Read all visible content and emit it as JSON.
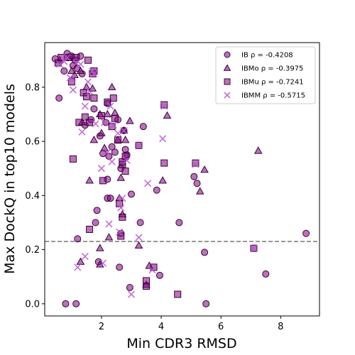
{
  "chart_data": {
    "type": "scatter",
    "xlabel": "Min CDR3 RMSD",
    "ylabel": "Max DockQ in top10 models",
    "xlim": [
      0.1,
      9.3
    ],
    "ylim": [
      -0.045,
      0.965
    ],
    "x_ticks": [
      2,
      4,
      6,
      8
    ],
    "y_ticks": [
      0.0,
      0.2,
      0.4,
      0.6,
      0.8
    ],
    "grid": false,
    "legend_position": "top-right",
    "reference_line": {
      "y": 0.23,
      "style": "dashed",
      "color": "#777777"
    },
    "series": [
      {
        "name": "IB ρ = -0.4208",
        "marker": "circle",
        "color": "#800080",
        "points": [
          [
            0.45,
            0.905
          ],
          [
            0.58,
            0.76
          ],
          [
            0.75,
            0.86
          ],
          [
            0.85,
            0.925
          ],
          [
            1.0,
            0.915
          ],
          [
            1.05,
            0.88
          ],
          [
            1.12,
            0.9
          ],
          [
            1.18,
            0.87
          ],
          [
            1.3,
            0.915
          ],
          [
            1.35,
            0.85
          ],
          [
            1.45,
            0.66
          ],
          [
            1.65,
            0.68
          ],
          [
            1.75,
            0.72
          ],
          [
            1.95,
            0.62
          ],
          [
            2.05,
            0.555
          ],
          [
            2.15,
            0.67
          ],
          [
            2.2,
            0.74
          ],
          [
            2.25,
            0.545
          ],
          [
            2.35,
            0.58
          ],
          [
            2.45,
            0.56
          ],
          [
            2.55,
            0.68
          ],
          [
            2.65,
            0.5
          ],
          [
            2.75,
            0.64
          ],
          [
            2.8,
            0.57
          ],
          [
            2.85,
            0.55
          ],
          [
            3.0,
            0.405
          ],
          [
            3.4,
            0.655
          ],
          [
            3.85,
            0.42
          ],
          [
            2.2,
            0.46
          ],
          [
            2.2,
            0.39
          ],
          [
            2.3,
            0.39
          ],
          [
            1.85,
            0.345
          ],
          [
            1.8,
            0.3
          ],
          [
            2.65,
            0.26
          ],
          [
            3.3,
            0.3
          ],
          [
            4.6,
            0.3
          ],
          [
            5.1,
            0.47
          ],
          [
            5.2,
            0.445
          ],
          [
            5.45,
            0.19
          ],
          [
            7.5,
            0.11
          ],
          [
            8.85,
            0.26
          ],
          [
            1.2,
            0.24
          ],
          [
            1.9,
            0.155
          ],
          [
            2.6,
            0.135
          ],
          [
            2.95,
            0.06
          ],
          [
            3.95,
            0.105
          ],
          [
            0.8,
            0.0
          ],
          [
            1.15,
            0.0
          ],
          [
            5.5,
            0.0
          ]
        ]
      },
      {
        "name": "IBMo ρ = -0.3975",
        "marker": "triangle",
        "color": "#800080",
        "points": [
          [
            0.6,
            0.9
          ],
          [
            0.9,
            0.91
          ],
          [
            1.0,
            0.86
          ],
          [
            1.1,
            0.845
          ],
          [
            1.3,
            0.86
          ],
          [
            1.35,
            0.67
          ],
          [
            1.5,
            0.8
          ],
          [
            1.6,
            0.455
          ],
          [
            1.7,
            0.795
          ],
          [
            1.75,
            0.605
          ],
          [
            1.95,
            0.7
          ],
          [
            2.0,
            0.63
          ],
          [
            2.1,
            0.575
          ],
          [
            2.2,
            0.7
          ],
          [
            2.35,
            0.8
          ],
          [
            2.45,
            0.705
          ],
          [
            2.55,
            0.605
          ],
          [
            2.6,
            0.39
          ],
          [
            2.65,
            0.465
          ],
          [
            2.75,
            0.64
          ],
          [
            2.8,
            0.605
          ],
          [
            2.95,
            0.675
          ],
          [
            3.25,
            0.215
          ],
          [
            3.6,
            0.14
          ],
          [
            4.05,
            0.455
          ],
          [
            4.2,
            0.695
          ],
          [
            5.3,
            0.415
          ],
          [
            5.45,
            0.495
          ],
          [
            7.25,
            0.565
          ],
          [
            1.3,
            0.155
          ],
          [
            1.95,
            0.205
          ],
          [
            2.25,
            0.245
          ],
          [
            2.7,
            0.33
          ],
          [
            3.5,
            0.07
          ],
          [
            1.95,
            0.145
          ]
        ]
      },
      {
        "name": "IBMu ρ = -0.7241",
        "marker": "square",
        "color": "#800080",
        "points": [
          [
            0.55,
            0.89
          ],
          [
            0.65,
            0.91
          ],
          [
            0.9,
            0.91
          ],
          [
            1.0,
            0.82
          ],
          [
            1.05,
            0.535
          ],
          [
            1.15,
            0.91
          ],
          [
            1.25,
            0.67
          ],
          [
            1.4,
            0.78
          ],
          [
            1.45,
            0.69
          ],
          [
            1.5,
            0.765
          ],
          [
            1.55,
            0.9
          ],
          [
            1.6,
            0.67
          ],
          [
            1.7,
            0.85
          ],
          [
            1.75,
            0.76
          ],
          [
            1.75,
            0.86
          ],
          [
            2.0,
            0.695
          ],
          [
            2.05,
            0.455
          ],
          [
            2.2,
            0.745
          ],
          [
            2.35,
            0.655
          ],
          [
            2.4,
            0.76
          ],
          [
            2.45,
            0.685
          ],
          [
            2.55,
            0.605
          ],
          [
            2.6,
            0.37
          ],
          [
            2.7,
            0.515
          ],
          [
            2.7,
            0.525
          ],
          [
            2.8,
            0.49
          ],
          [
            2.8,
            0.545
          ],
          [
            3.25,
            0.585
          ],
          [
            4.1,
            0.735
          ],
          [
            4.1,
            0.52
          ],
          [
            5.15,
            0.52
          ],
          [
            7.1,
            0.205
          ],
          [
            1.6,
            0.275
          ],
          [
            2.7,
            0.32
          ],
          [
            2.65,
            0.25
          ],
          [
            3.5,
            0.085
          ],
          [
            3.5,
            0.065
          ],
          [
            3.75,
            0.135
          ],
          [
            4.55,
            0.035
          ]
        ]
      },
      {
        "name": "IBMM ρ = -0.5715",
        "marker": "x",
        "color": "#BA55D3",
        "points": [
          [
            0.6,
            0.885
          ],
          [
            0.75,
            0.895
          ],
          [
            0.85,
            0.91
          ],
          [
            0.95,
            0.835
          ],
          [
            1.05,
            0.79
          ],
          [
            1.15,
            0.89
          ],
          [
            1.3,
            0.885
          ],
          [
            1.35,
            0.635
          ],
          [
            1.45,
            0.73
          ],
          [
            1.55,
            0.82
          ],
          [
            1.6,
            0.785
          ],
          [
            1.75,
            0.85
          ],
          [
            1.8,
            0.665
          ],
          [
            2.0,
            0.5
          ],
          [
            2.1,
            0.67
          ],
          [
            2.2,
            0.56
          ],
          [
            2.3,
            0.73
          ],
          [
            2.35,
            0.525
          ],
          [
            2.4,
            0.66
          ],
          [
            2.55,
            0.63
          ],
          [
            2.65,
            0.355
          ],
          [
            2.7,
            0.39
          ],
          [
            2.75,
            0.64
          ],
          [
            2.85,
            0.53
          ],
          [
            3.25,
            0.585
          ],
          [
            3.55,
            0.445
          ],
          [
            4.05,
            0.61
          ],
          [
            4.1,
            0.73
          ],
          [
            5.15,
            0.515
          ],
          [
            7.1,
            0.205
          ],
          [
            1.2,
            0.135
          ],
          [
            1.45,
            0.175
          ],
          [
            2.05,
            0.15
          ],
          [
            2.25,
            0.295
          ],
          [
            2.6,
            0.265
          ],
          [
            3.0,
            0.035
          ],
          [
            3.25,
            0.245
          ],
          [
            3.7,
            0.125
          ],
          [
            1.0,
            0.83
          ],
          [
            1.7,
            0.86
          ]
        ]
      }
    ]
  }
}
